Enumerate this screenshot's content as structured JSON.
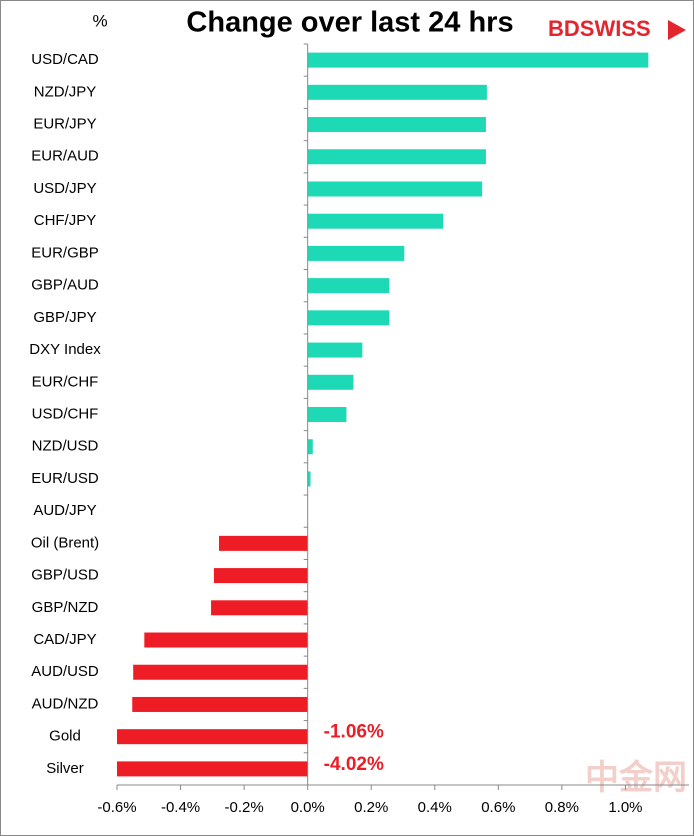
{
  "chart_data": {
    "type": "barh",
    "title": "Change over last 24 hrs",
    "unit_label": "%",
    "brand": "BDSWISS",
    "watermark": "中金网",
    "categories": [
      "USD/CAD",
      "NZD/JPY",
      "EUR/JPY",
      "EUR/AUD",
      "USD/JPY",
      "CHF/JPY",
      "EUR/GBP",
      "GBP/AUD",
      "GBP/JPY",
      "DXY Index",
      "EUR/CHF",
      "USD/CHF",
      "NZD/USD",
      "EUR/USD",
      "AUD/JPY",
      "Oil (Brent)",
      "GBP/USD",
      "GBP/NZD",
      "CAD/JPY",
      "AUD/USD",
      "AUD/NZD",
      "Gold",
      "Silver"
    ],
    "values": [
      1.072,
      0.564,
      0.561,
      0.561,
      0.549,
      0.426,
      0.304,
      0.257,
      0.257,
      0.172,
      0.144,
      0.122,
      0.016,
      0.009,
      0,
      -0.279,
      -0.295,
      -0.304,
      -0.514,
      -0.549,
      -0.552,
      -1.06,
      -4.02
    ],
    "value_labels": [
      null,
      null,
      null,
      null,
      null,
      null,
      null,
      null,
      null,
      null,
      null,
      null,
      null,
      null,
      null,
      null,
      null,
      null,
      null,
      null,
      null,
      "-1.06%",
      "-4.02%"
    ],
    "colors": {
      "positive": "#1dd9b5",
      "negative": "#ee1c25"
    },
    "xlim": [
      -0.6,
      1.2
    ],
    "xticks": [
      {
        "value": -0.6,
        "label": "-0.6%"
      },
      {
        "value": -0.4,
        "label": "-0.4%"
      },
      {
        "value": -0.2,
        "label": "-0.2%"
      },
      {
        "value": 0,
        "label": "0.0%"
      },
      {
        "value": 0.2,
        "label": "0.2%"
      },
      {
        "value": 0.4,
        "label": "0.4%"
      },
      {
        "value": 0.6,
        "label": "0.6%"
      },
      {
        "value": 0.8,
        "label": "0.8%"
      },
      {
        "value": 1.0,
        "label": "1.0%"
      }
    ]
  }
}
